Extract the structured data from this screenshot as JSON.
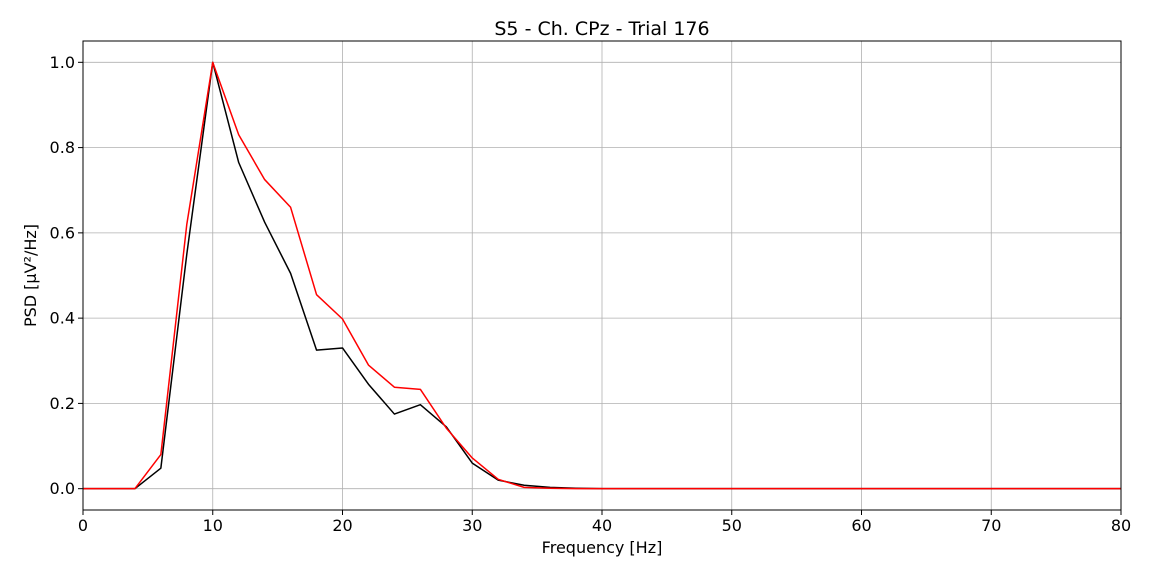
{
  "chart_data": {
    "type": "line",
    "title": "S5 - Ch. CPz - Trial 176",
    "xlabel": "Frequency [Hz]",
    "ylabel": "PSD [μV²/Hz]",
    "xlim": [
      0,
      80
    ],
    "ylim": [
      -0.05,
      1.05
    ],
    "xticks": [
      0,
      10,
      20,
      30,
      40,
      50,
      60,
      70,
      80
    ],
    "yticks": [
      0.0,
      0.2,
      0.4,
      0.6,
      0.8,
      1.0
    ],
    "xtick_labels": [
      "0",
      "10",
      "20",
      "30",
      "40",
      "50",
      "60",
      "70",
      "80"
    ],
    "ytick_labels": [
      "0.0",
      "0.2",
      "0.4",
      "0.6",
      "0.8",
      "1.0"
    ],
    "grid": true,
    "legend": "none",
    "x": [
      0,
      2,
      4,
      6,
      8,
      10,
      12,
      14,
      16,
      18,
      20,
      22,
      24,
      26,
      28,
      30,
      32,
      34,
      36,
      38,
      40,
      42,
      44,
      46,
      48,
      50,
      52,
      54,
      56,
      58,
      60,
      62,
      64,
      66,
      68,
      70,
      72,
      74,
      76,
      78,
      80
    ],
    "series": [
      {
        "color": "#000000",
        "values": [
          0,
          0,
          0,
          0.048,
          0.55,
          1.0,
          0.765,
          0.625,
          0.505,
          0.325,
          0.33,
          0.245,
          0.175,
          0.197,
          0.145,
          0.06,
          0.02,
          0.008,
          0.003,
          0.001,
          0,
          0,
          0,
          0,
          0,
          0,
          0,
          0,
          0,
          0,
          0,
          0,
          0,
          0,
          0,
          0,
          0,
          0,
          0,
          0,
          0
        ]
      },
      {
        "color": "#ff0000",
        "values": [
          0,
          0,
          0,
          0.08,
          0.62,
          1.0,
          0.83,
          0.725,
          0.66,
          0.455,
          0.398,
          0.29,
          0.238,
          0.233,
          0.142,
          0.072,
          0.022,
          0.003,
          0.001,
          0,
          0,
          0,
          0,
          0,
          0,
          0,
          0,
          0,
          0,
          0,
          0,
          0,
          0,
          0,
          0,
          0,
          0,
          0,
          0,
          0,
          0
        ]
      }
    ]
  }
}
